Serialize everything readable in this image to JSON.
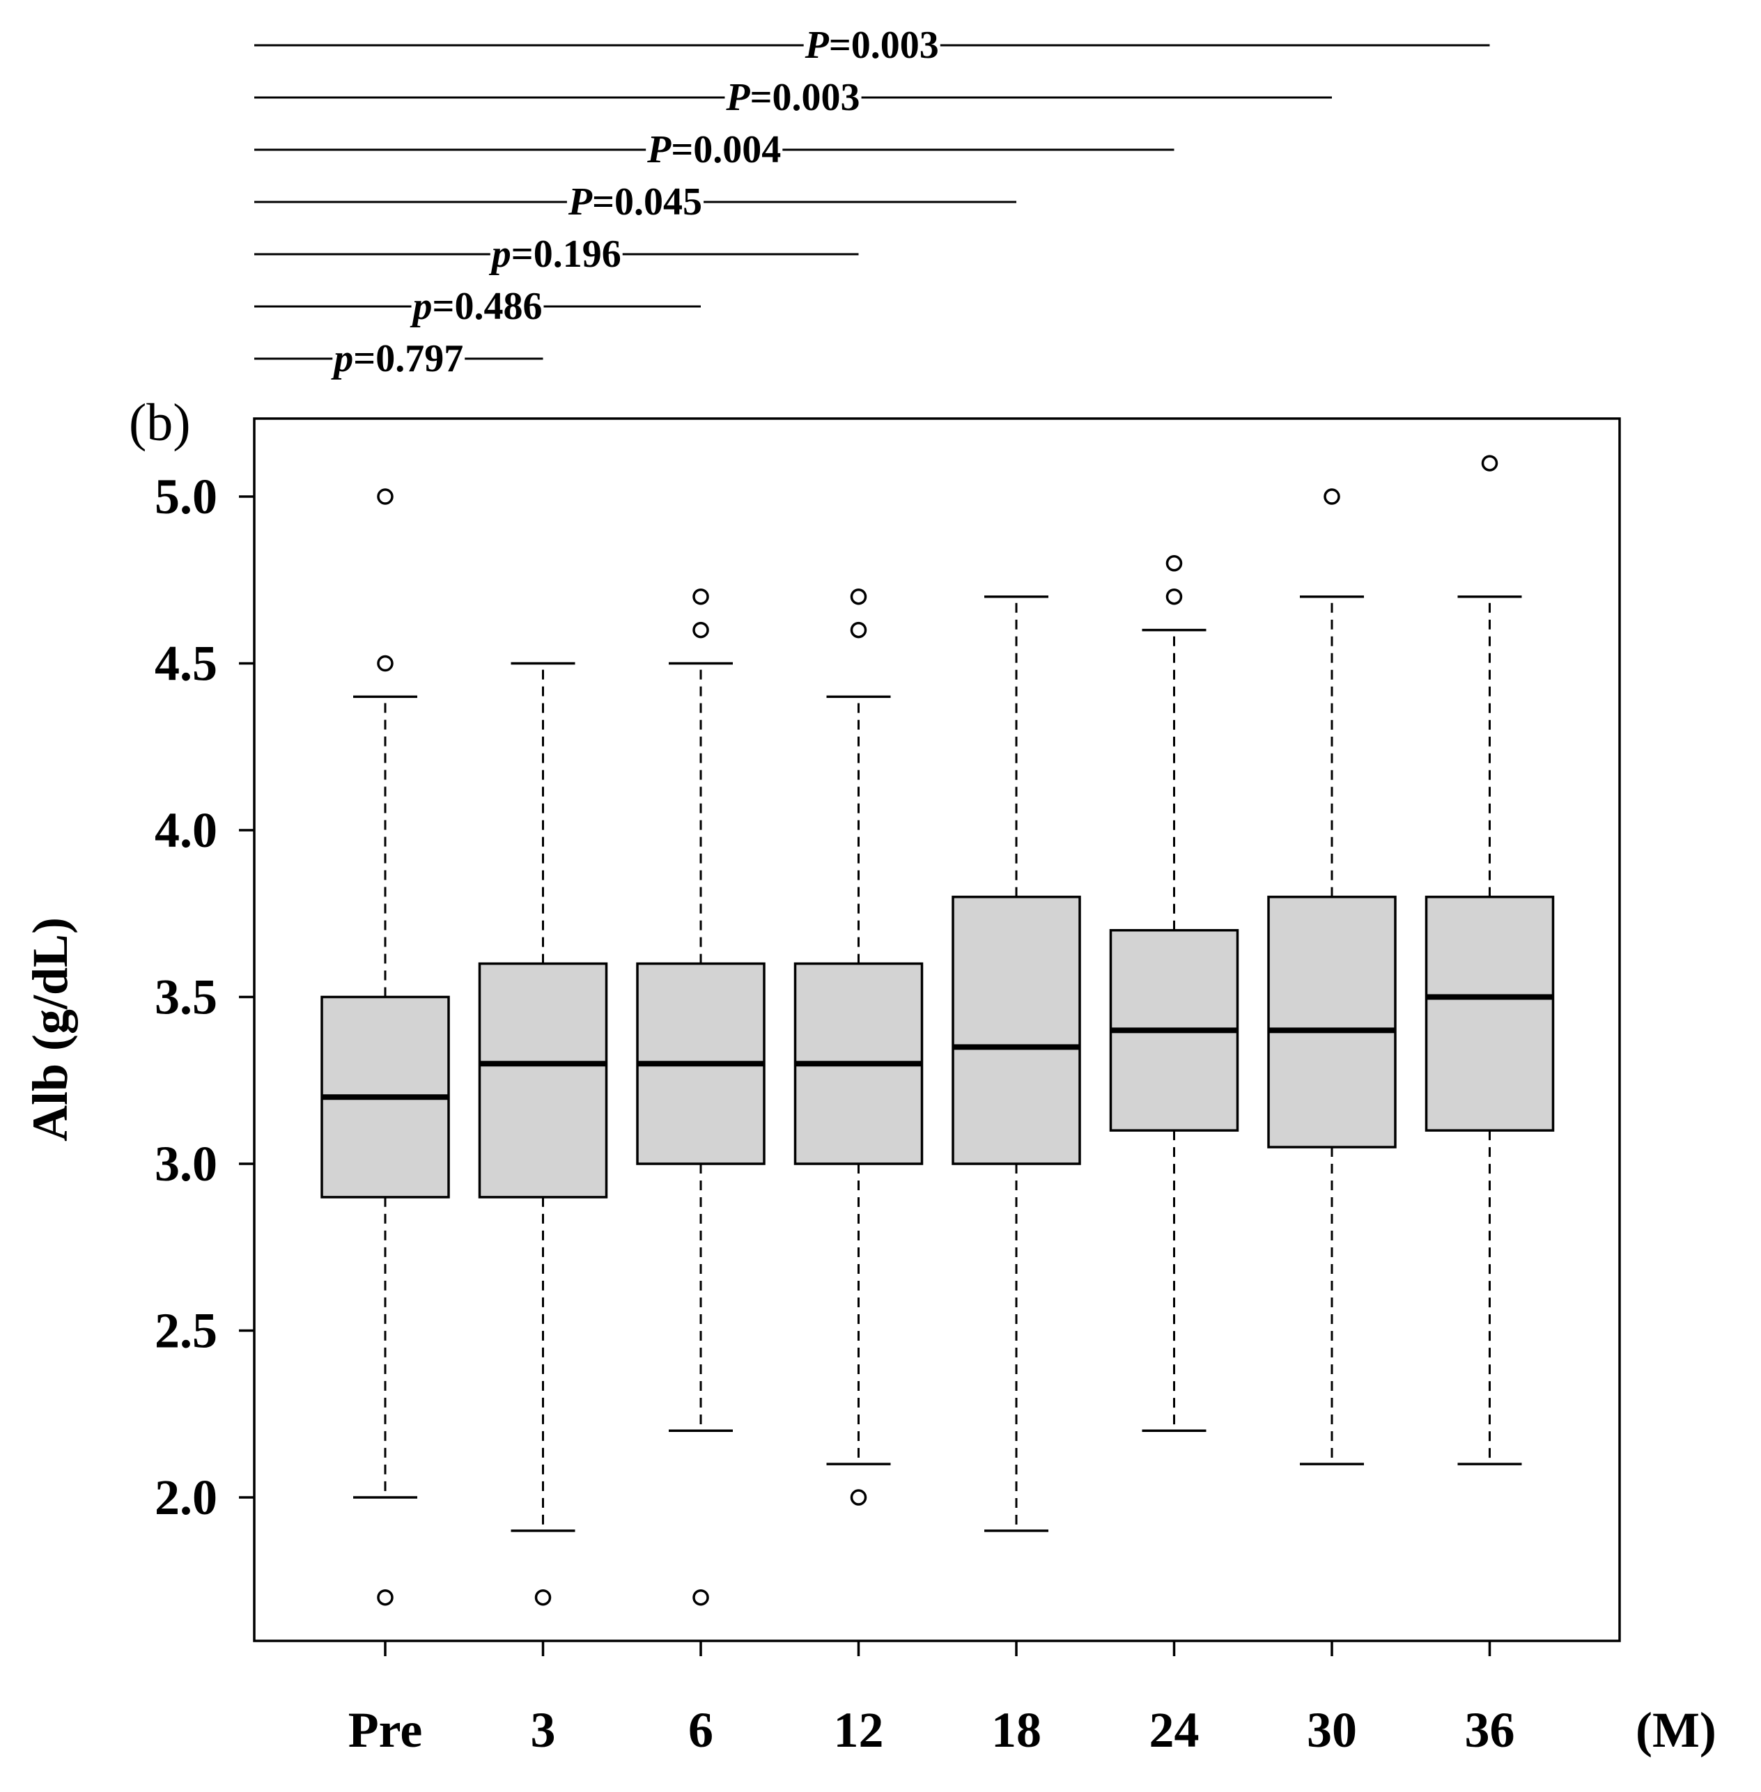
{
  "chart_data": {
    "type": "box",
    "panel_label": "(b)",
    "ylabel": "Alb (g/dL)",
    "x_unit_label": "(M)",
    "ylim": [
      1.6,
      5.25
    ],
    "yticks": [
      "2.0",
      "2.5",
      "3.0",
      "3.5",
      "4.0",
      "4.5",
      "5.0"
    ],
    "categories": [
      "Pre",
      "3",
      "6",
      "12",
      "18",
      "24",
      "30",
      "36"
    ],
    "box_fill": "#d3d3d3",
    "boxes": [
      {
        "category": "Pre",
        "whisker_low": 2.0,
        "q1": 2.9,
        "median": 3.2,
        "q3": 3.5,
        "whisker_high": 4.4,
        "outliers": [
          1.7,
          4.5,
          5.0
        ]
      },
      {
        "category": "3",
        "whisker_low": 1.9,
        "q1": 2.9,
        "median": 3.3,
        "q3": 3.6,
        "whisker_high": 4.5,
        "outliers": [
          1.7
        ]
      },
      {
        "category": "6",
        "whisker_low": 2.2,
        "q1": 3.0,
        "median": 3.3,
        "q3": 3.6,
        "whisker_high": 4.5,
        "outliers": [
          1.7,
          4.6,
          4.7
        ]
      },
      {
        "category": "12",
        "whisker_low": 2.1,
        "q1": 3.0,
        "median": 3.3,
        "q3": 3.6,
        "whisker_high": 4.4,
        "outliers": [
          2.0,
          4.6,
          4.7
        ]
      },
      {
        "category": "18",
        "whisker_low": 1.9,
        "q1": 3.0,
        "median": 3.35,
        "q3": 3.8,
        "whisker_high": 4.7,
        "outliers": []
      },
      {
        "category": "24",
        "whisker_low": 2.2,
        "q1": 3.1,
        "median": 3.4,
        "q3": 3.7,
        "whisker_high": 4.6,
        "outliers": [
          4.7,
          4.8
        ]
      },
      {
        "category": "30",
        "whisker_low": 2.1,
        "q1": 3.05,
        "median": 3.4,
        "q3": 3.8,
        "whisker_high": 4.7,
        "outliers": [
          5.0
        ]
      },
      {
        "category": "36",
        "whisker_low": 2.1,
        "q1": 3.1,
        "median": 3.5,
        "q3": 3.8,
        "whisker_high": 4.7,
        "outliers": [
          5.1
        ]
      }
    ],
    "comparisons": [
      {
        "from": "Pre",
        "to": "36",
        "p_symbol": "P",
        "p_value": "=0.003"
      },
      {
        "from": "Pre",
        "to": "30",
        "p_symbol": "P",
        "p_value": "=0.003"
      },
      {
        "from": "Pre",
        "to": "24",
        "p_symbol": "P",
        "p_value": "=0.004"
      },
      {
        "from": "Pre",
        "to": "18",
        "p_symbol": "P",
        "p_value": "=0.045"
      },
      {
        "from": "Pre",
        "to": "12",
        "p_symbol": "p",
        "p_value": "=0.196"
      },
      {
        "from": "Pre",
        "to": "6",
        "p_symbol": "p",
        "p_value": "=0.486"
      },
      {
        "from": "Pre",
        "to": "3",
        "p_symbol": "p",
        "p_value": "=0.797"
      }
    ]
  }
}
